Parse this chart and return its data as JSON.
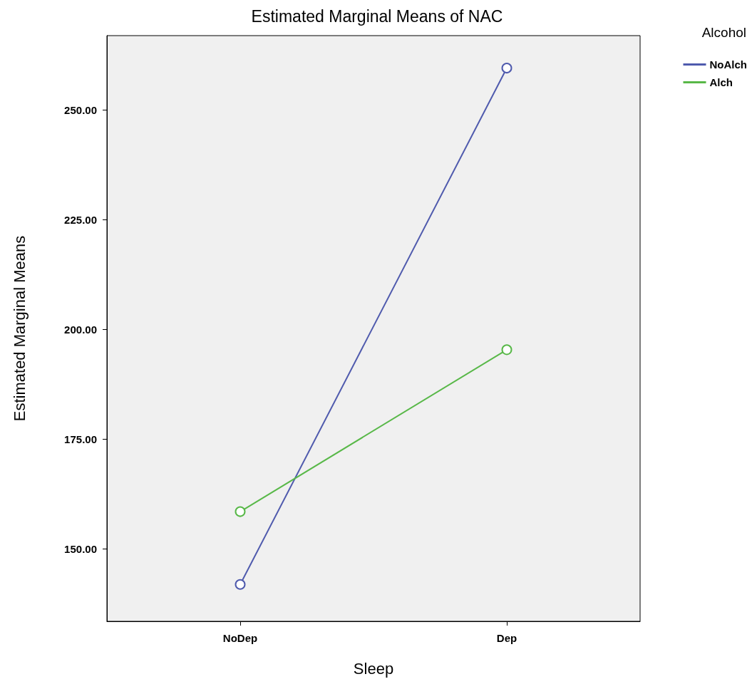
{
  "chart_data": {
    "type": "line",
    "title": "Estimated Marginal Means of NAC",
    "xlabel": "Sleep",
    "ylabel": "Estimated Marginal Means",
    "legend_title": "Alcohol",
    "categories": [
      "NoDep",
      "Dep"
    ],
    "series": [
      {
        "name": "NoAlch",
        "color": "#4f5aad",
        "values": [
          141.9,
          259.6
        ]
      },
      {
        "name": "Alch",
        "color": "#58b848",
        "values": [
          158.5,
          195.4
        ]
      }
    ],
    "ylim": [
      133.5,
      267
    ],
    "yticks": [
      {
        "value": 150,
        "label": "150.00"
      },
      {
        "value": 175,
        "label": "175.00"
      },
      {
        "value": 200,
        "label": "200.00"
      },
      {
        "value": 225,
        "label": "225.00"
      },
      {
        "value": 250,
        "label": "250.00"
      }
    ],
    "grid": false,
    "legend": "top right",
    "marker": "circle",
    "line_style": "solid"
  }
}
